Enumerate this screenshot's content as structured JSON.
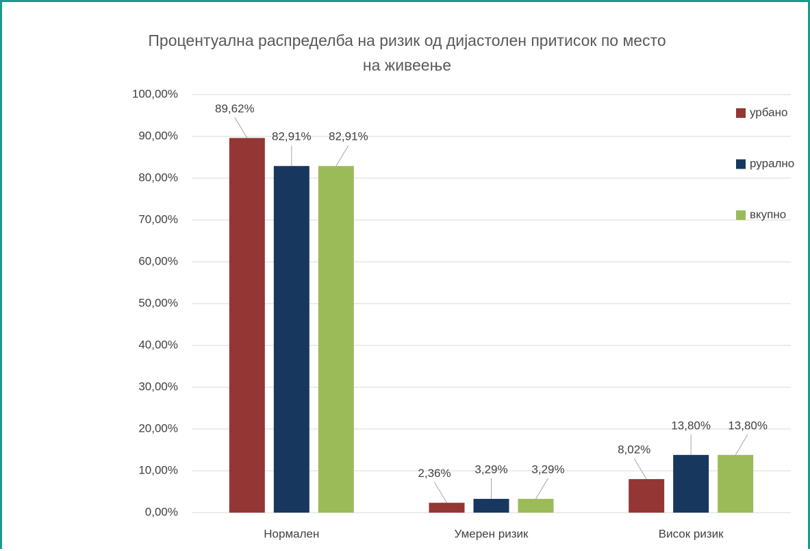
{
  "chart_data": {
    "type": "bar",
    "title": "Процентуална распределба на ризик од дијастолен притисок  по место\nна живеење",
    "categories": [
      "Нормален",
      "Умерен ризик",
      "Висок ризик"
    ],
    "series": [
      {
        "name": "урбано",
        "color": "#943634",
        "values": [
          89.62,
          2.36,
          8.02
        ],
        "value_labels": [
          "89,62%",
          "2,36%",
          "8,02%"
        ]
      },
      {
        "name": "рурално",
        "color": "#17375e",
        "values": [
          82.91,
          3.29,
          13.8
        ],
        "value_labels": [
          "82,91%",
          "3,29%",
          "13,80%"
        ]
      },
      {
        "name": "вкупно",
        "color": "#9bbb59",
        "values": [
          82.91,
          3.29,
          13.8
        ],
        "value_labels": [
          "82,91%",
          "3,29%",
          "13,80%"
        ]
      }
    ],
    "ylim": [
      0,
      100
    ],
    "yticks": [
      {
        "value": 0,
        "label": "0,00%"
      },
      {
        "value": 10,
        "label": "10,00%"
      },
      {
        "value": 20,
        "label": "20,00%"
      },
      {
        "value": 30,
        "label": "30,00%"
      },
      {
        "value": 40,
        "label": "40,00%"
      },
      {
        "value": 50,
        "label": "50,00%"
      },
      {
        "value": 60,
        "label": "60,00%"
      },
      {
        "value": 70,
        "label": "70,00%"
      },
      {
        "value": 80,
        "label": "80,00%"
      },
      {
        "value": 90,
        "label": "90,00%"
      },
      {
        "value": 100,
        "label": "100,00%"
      }
    ],
    "grid": true,
    "legend": "right"
  }
}
